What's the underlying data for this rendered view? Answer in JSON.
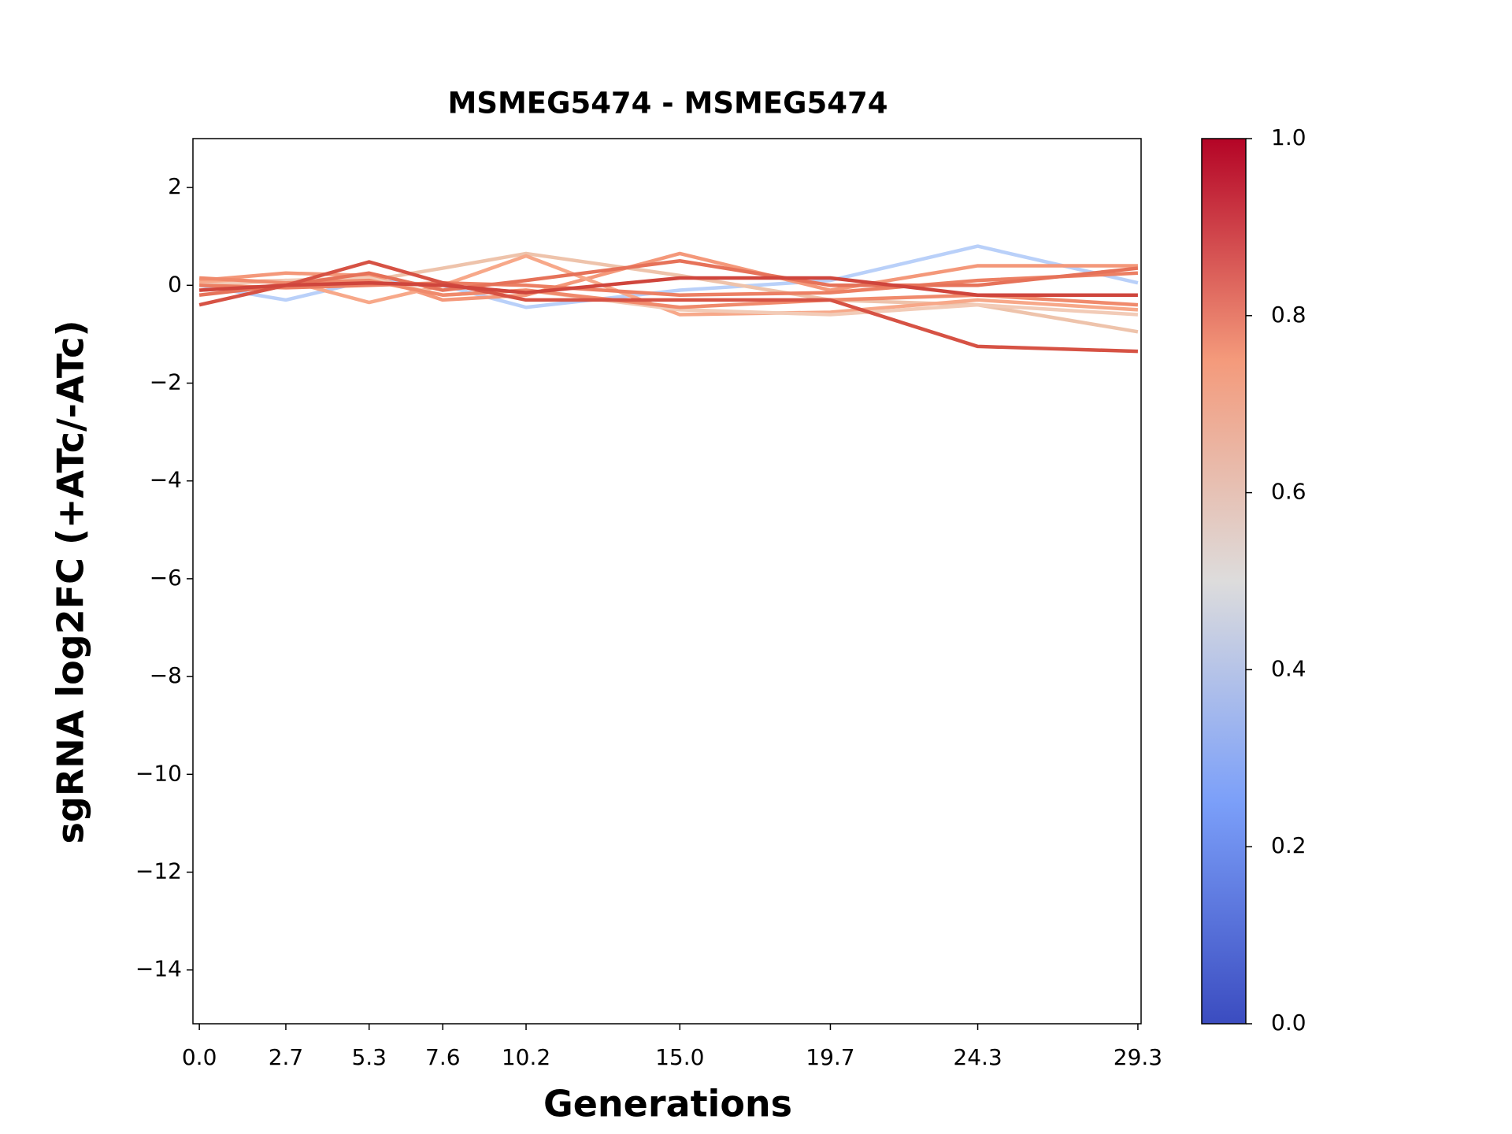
{
  "chart_data": {
    "type": "line",
    "title": "MSMEG5474 - MSMEG5474",
    "x_label": "Generations",
    "y_label": "sgRNA log2FC (+ATc/-ATc)",
    "x": [
      0,
      2.7,
      5.3,
      7.6,
      10.2,
      15,
      19.7,
      24.3,
      29.3
    ],
    "xlim": [
      -0.2,
      29.4
    ],
    "xticks": [
      {
        "value": 0,
        "label": "0.0"
      },
      2.7,
      5.3,
      7.6,
      10.2,
      {
        "value": 15,
        "label": "15.0"
      },
      19.7,
      24.3,
      29.3
    ],
    "ylim": [
      -15.1,
      3
    ],
    "yticks": [
      2,
      0,
      {
        "value": -2,
        "label": "−2"
      },
      {
        "value": -4,
        "label": "−4"
      },
      {
        "value": -6,
        "label": "−6"
      },
      {
        "value": -8,
        "label": "−8"
      },
      {
        "value": -10,
        "label": "−10"
      },
      {
        "value": -12,
        "label": "−12"
      },
      {
        "value": -14,
        "label": "−14"
      }
    ],
    "series": [
      {
        "color": "#b9d0f9",
        "values": [
          0,
          -0.3,
          0.1,
          0.0,
          -0.45,
          -0.1,
          0.1,
          0.8,
          0.05
        ]
      },
      {
        "color": "#eec3ab",
        "values": [
          -0.1,
          0.0,
          0.1,
          0.35,
          0.65,
          0.2,
          -0.3,
          -0.4,
          -0.95
        ]
      },
      {
        "color": "#f4987a",
        "values": [
          0.1,
          0.25,
          0.2,
          -0.3,
          -0.2,
          0.65,
          -0.1,
          0.4,
          0.4
        ]
      },
      {
        "color": "#f7a889",
        "values": [
          0.05,
          0.1,
          -0.35,
          0.0,
          0.6,
          -0.6,
          -0.55,
          -0.3,
          -0.5
        ]
      },
      {
        "color": "#f2cbb7",
        "values": [
          0.0,
          0.1,
          0.15,
          -0.2,
          -0.1,
          -0.5,
          -0.6,
          -0.4,
          -0.6
        ]
      },
      {
        "color": "#f08a6c",
        "values": [
          0.15,
          0.05,
          0.1,
          -0.2,
          -0.1,
          -0.45,
          -0.3,
          -0.2,
          -0.4
        ]
      },
      {
        "color": "#ec7f63",
        "values": [
          0.0,
          -0.05,
          0.0,
          0.05,
          0.0,
          -0.2,
          -0.15,
          0.1,
          0.25
        ]
      },
      {
        "color": "#e67259",
        "values": [
          -0.2,
          0.0,
          0.25,
          -0.1,
          0.1,
          0.5,
          0.0,
          0.0,
          0.35
        ]
      },
      {
        "color": "#d65244",
        "values": [
          -0.4,
          0.0,
          0.48,
          0.05,
          -0.3,
          -0.3,
          -0.3,
          -1.25,
          -1.35
        ]
      },
      {
        "color": "#cf453c",
        "values": [
          -0.1,
          0.0,
          0.05,
          0.0,
          -0.15,
          0.15,
          0.15,
          -0.2,
          -0.2
        ]
      }
    ],
    "colorbar": {
      "lim": [
        0,
        1
      ],
      "ticks": [
        {
          "value": 0,
          "label": "0.0"
        },
        0.2,
        0.4,
        0.6,
        0.8,
        {
          "value": 1,
          "label": "1.0"
        }
      ]
    }
  }
}
